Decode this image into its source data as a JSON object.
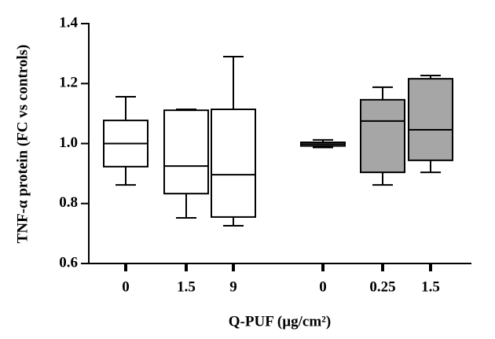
{
  "chart_data": {
    "type": "box",
    "y_label": "TNF-α protein (FC vs controls)",
    "x_label": "Q-PUF (µg/cm²)",
    "categories": [
      "0",
      "1.5",
      "9",
      "0",
      "0.25",
      "1.5"
    ],
    "min": [
      0.862,
      0.752,
      0.726,
      0.987,
      0.862,
      0.904
    ],
    "q1": [
      0.923,
      0.833,
      0.755,
      0.992,
      0.904,
      0.944
    ],
    "median": [
      1.0,
      0.925,
      0.896,
      0.998,
      1.075,
      1.046
    ],
    "q3": [
      1.077,
      1.111,
      1.114,
      1.004,
      1.146,
      1.216
    ],
    "max": [
      1.156,
      1.114,
      1.29,
      1.012,
      1.188,
      1.227
    ],
    "box_colors": [
      "#ffffff",
      "#ffffff",
      "#ffffff",
      "#a6a6a6",
      "#a6a6a6",
      "#a6a6a6"
    ],
    "ylim": [
      0.6,
      1.4
    ],
    "yticks": [
      0.6,
      0.8,
      {
        "value": 1,
        "label": "1.0"
      },
      1.2,
      1.4
    ]
  }
}
